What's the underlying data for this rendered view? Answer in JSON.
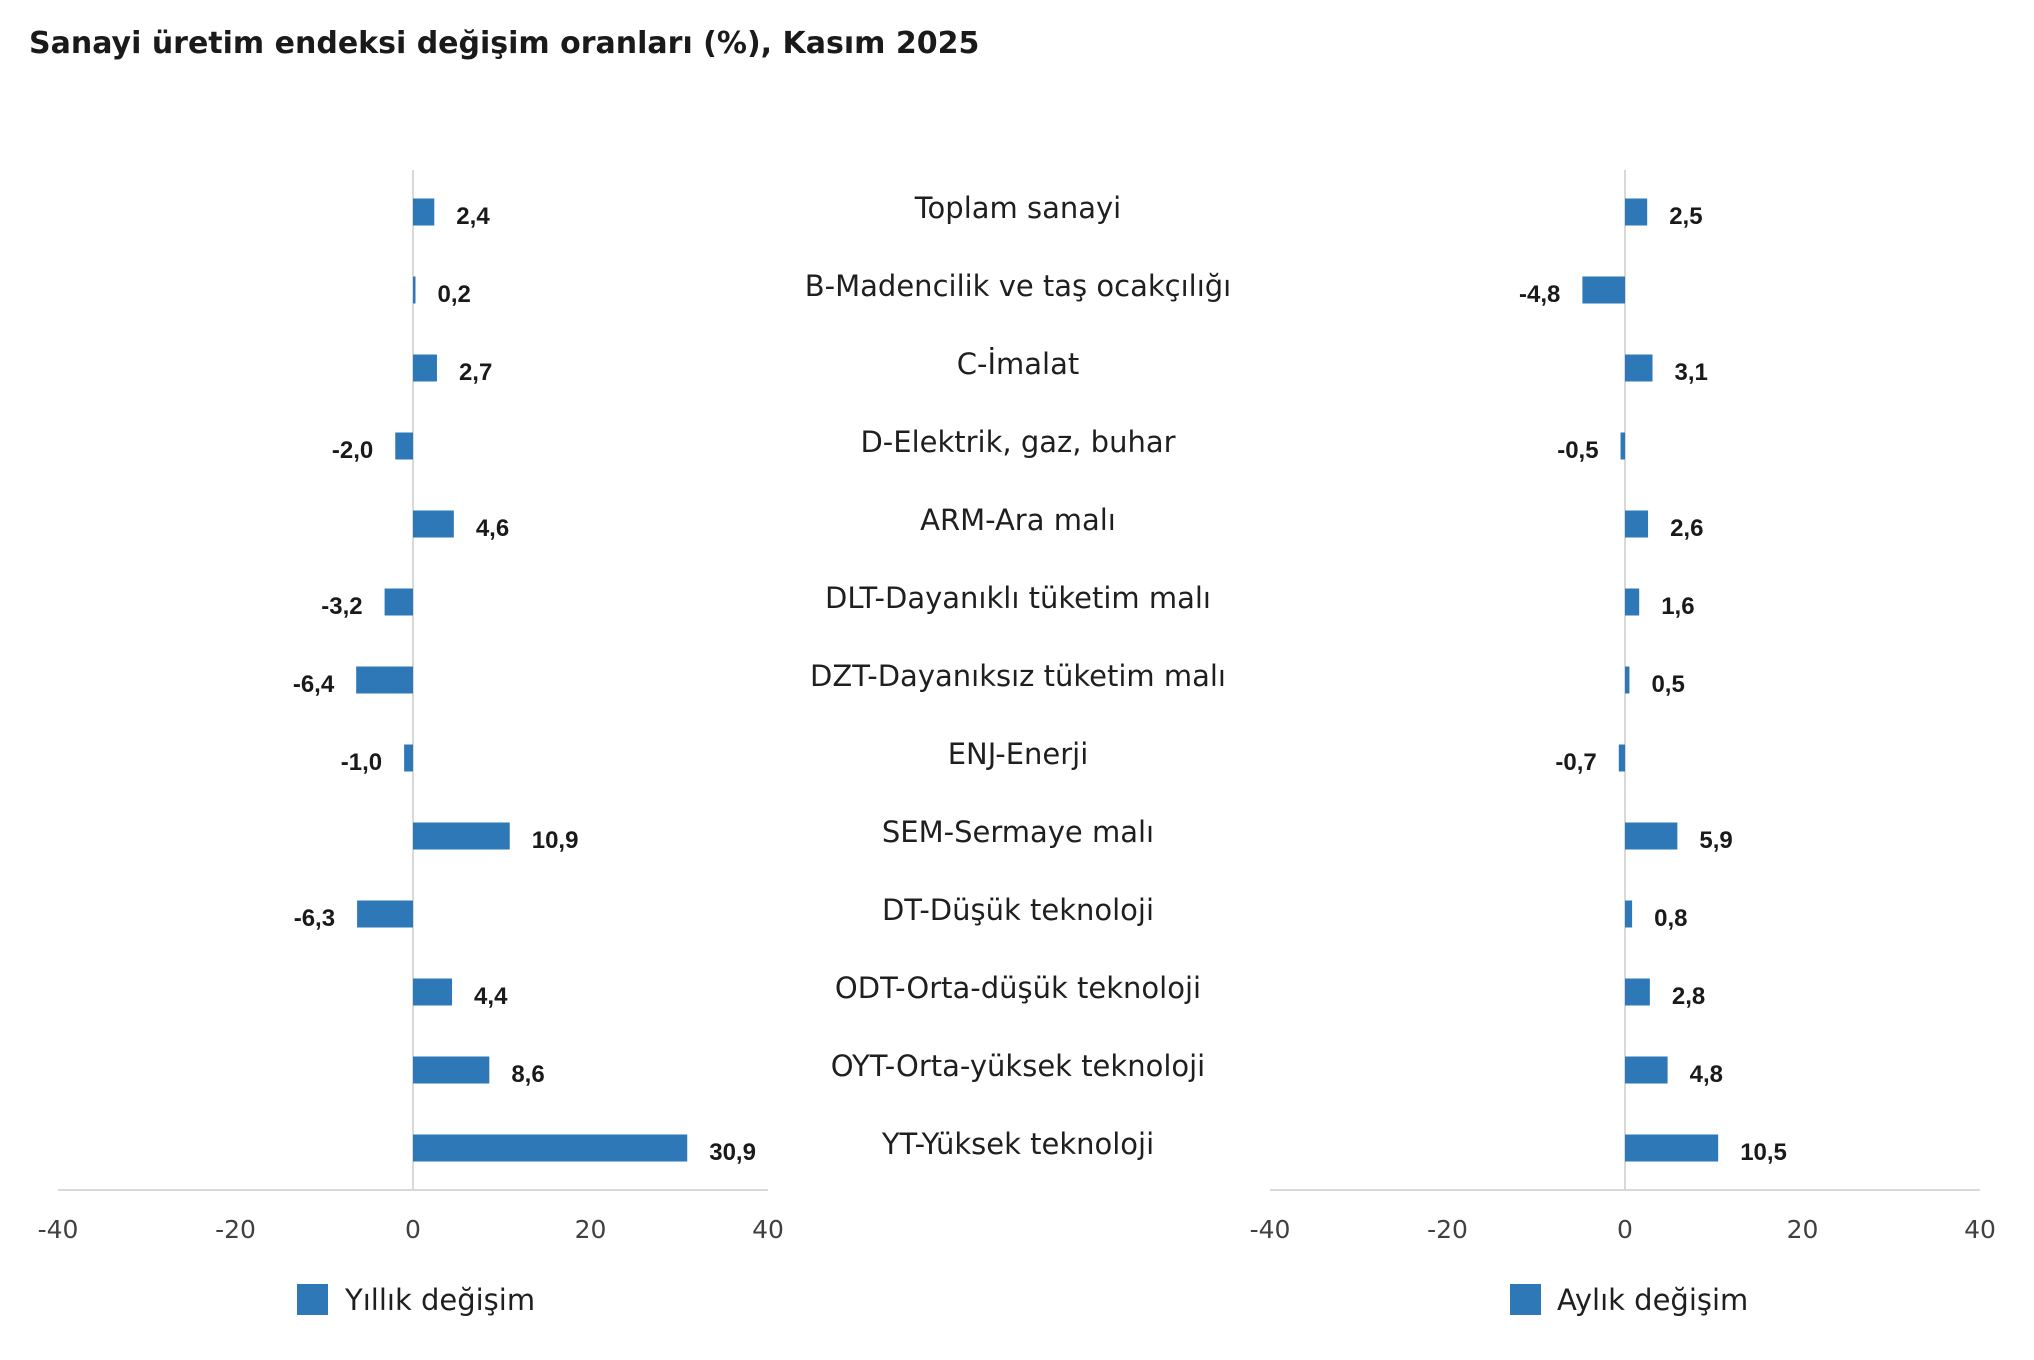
{
  "title": "Sanayi üretim endeksi değişim oranları (%), Kasım 2025",
  "colors": {
    "bar": "#2e78b7",
    "axis": "#d9d9d9",
    "text": "#1a1a1a"
  },
  "chart_data": [
    {
      "type": "bar",
      "orientation": "horizontal",
      "categories": [
        "Toplam sanayi",
        "B-Madencilik ve taş ocakçılığı",
        "C-İmalat",
        "D-Elektrik, gaz, buhar",
        "ARM-Ara malı",
        "DLT-Dayanıklı tüketim malı",
        "DZT-Dayanıksız tüketim malı",
        "ENJ-Enerji",
        "SEM-Sermaye malı",
        "DT-Düşük teknoloji",
        "ODT-Orta-düşük teknoloji",
        "OYT-Orta-yüksek teknoloji",
        "YT-Yüksek teknoloji"
      ],
      "series": [
        {
          "name": "Yıllık değişim",
          "values": [
            2.4,
            0.2,
            2.7,
            -2.0,
            4.6,
            -3.2,
            -6.4,
            -1.0,
            10.9,
            -6.3,
            4.4,
            8.6,
            30.9
          ],
          "labels": [
            "2,4",
            "0,2",
            "2,7",
            "-2,0",
            "4,6",
            "-3,2",
            "-6,4",
            "-1,0",
            "10,9",
            "-6,3",
            "4,4",
            "8,6",
            "30,9"
          ]
        }
      ],
      "xlim": [
        -40,
        40
      ],
      "ticks": [
        -40,
        -20,
        0,
        20,
        40
      ],
      "tick_labels": [
        "-40",
        "-20",
        "0",
        "20",
        "40"
      ],
      "legend": "bottom",
      "grid": false
    },
    {
      "type": "bar",
      "orientation": "horizontal",
      "categories": [
        "Toplam sanayi",
        "B-Madencilik ve taş ocakçılığı",
        "C-İmalat",
        "D-Elektrik, gaz, buhar",
        "ARM-Ara malı",
        "DLT-Dayanıklı tüketim malı",
        "DZT-Dayanıksız tüketim malı",
        "ENJ-Enerji",
        "SEM-Sermaye malı",
        "DT-Düşük teknoloji",
        "ODT-Orta-düşük teknoloji",
        "OYT-Orta-yüksek teknoloji",
        "YT-Yüksek teknoloji"
      ],
      "series": [
        {
          "name": "Aylık değişim",
          "values": [
            2.5,
            -4.8,
            3.1,
            -0.5,
            2.6,
            1.6,
            0.5,
            -0.7,
            5.9,
            0.8,
            2.8,
            4.8,
            10.5
          ],
          "labels": [
            "2,5",
            "-4,8",
            "3,1",
            "-0,5",
            "2,6",
            "1,6",
            "0,5",
            "-0,7",
            "5,9",
            "0,8",
            "2,8",
            "4,8",
            "10,5"
          ]
        }
      ],
      "xlim": [
        -40,
        40
      ],
      "ticks": [
        -40,
        -20,
        0,
        20,
        40
      ],
      "tick_labels": [
        "-40",
        "-20",
        "0",
        "20",
        "40"
      ],
      "legend": "bottom",
      "grid": false
    }
  ]
}
